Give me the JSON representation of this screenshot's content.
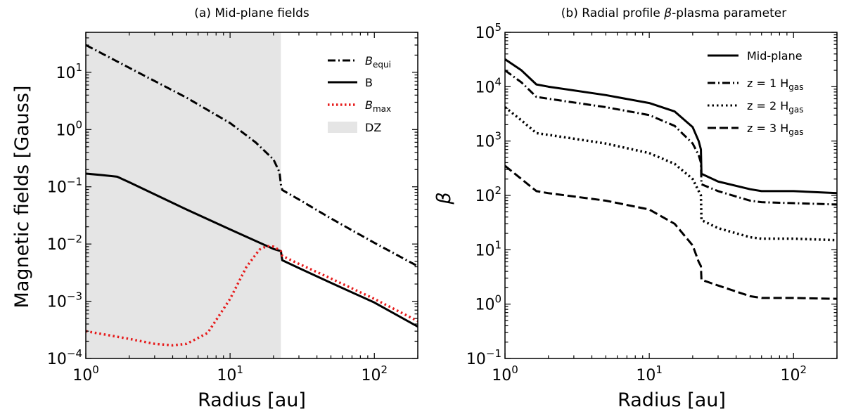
{
  "chart_data": [
    {
      "type": "line",
      "panel": "a",
      "title": "(a) Mid-plane fields",
      "xlabel": "Radius [au]",
      "ylabel": "Magnetic fields [Gauss]",
      "xscale": "log",
      "yscale": "log",
      "xlim": [
        1,
        200
      ],
      "ylim": [
        0.0001,
        50
      ],
      "x_ticks": [
        {
          "value": 1,
          "base": "10",
          "exp": "0"
        },
        {
          "value": 10,
          "base": "10",
          "exp": "1"
        },
        {
          "value": 100,
          "base": "10",
          "exp": "2"
        }
      ],
      "y_ticks": [
        {
          "value": 0.0001,
          "base": "10",
          "exp": "−4"
        },
        {
          "value": 0.001,
          "base": "10",
          "exp": "−3"
        },
        {
          "value": 0.01,
          "base": "10",
          "exp": "−2"
        },
        {
          "value": 0.1,
          "base": "10",
          "exp": "−1"
        },
        {
          "value": 1,
          "base": "10",
          "exp": "0"
        },
        {
          "value": 10,
          "base": "10",
          "exp": "1"
        }
      ],
      "shaded_region": {
        "name": "DZ",
        "x_range": [
          1,
          22.5
        ],
        "color": "#e5e5e5"
      },
      "legend_position": "top-right",
      "series": [
        {
          "name": "B_equi",
          "label_main": "B",
          "label_sub": "equi",
          "italic": true,
          "style": "dashdot",
          "color": "#000000",
          "points": [
            [
              1,
              30
            ],
            [
              2,
              12
            ],
            [
              5,
              3.6
            ],
            [
              10,
              1.3
            ],
            [
              15,
              0.6
            ],
            [
              20,
              0.3
            ],
            [
              22,
              0.18
            ],
            [
              22.5,
              0.11
            ],
            [
              23,
              0.088
            ],
            [
              30,
              0.06
            ],
            [
              50,
              0.028
            ],
            [
              100,
              0.0105
            ],
            [
              200,
              0.0041
            ]
          ]
        },
        {
          "name": "B",
          "label_main": "B",
          "label_sub": "",
          "italic": false,
          "style": "solid",
          "color": "#000000",
          "points": [
            [
              1,
              0.17
            ],
            [
              1.3,
              0.16
            ],
            [
              1.65,
              0.15
            ],
            [
              2,
              0.12
            ],
            [
              5,
              0.04
            ],
            [
              10,
              0.018
            ],
            [
              20,
              0.0082
            ],
            [
              22.5,
              0.0075
            ],
            [
              23,
              0.0052
            ],
            [
              30,
              0.0038
            ],
            [
              50,
              0.0021
            ],
            [
              100,
              0.00095
            ],
            [
              200,
              0.00036
            ]
          ]
        },
        {
          "name": "B_max",
          "label_main": "B",
          "label_sub": "max",
          "italic": true,
          "style": "dotted",
          "color": "#e61a1a",
          "points": [
            [
              1,
              0.0003
            ],
            [
              2,
              0.00022
            ],
            [
              3,
              0.00018
            ],
            [
              4,
              0.00017
            ],
            [
              5,
              0.00018
            ],
            [
              7,
              0.00028
            ],
            [
              10,
              0.0011
            ],
            [
              13,
              0.004
            ],
            [
              16,
              0.008
            ],
            [
              18,
              0.0092
            ],
            [
              20,
              0.009
            ],
            [
              22.5,
              0.0075
            ],
            [
              23,
              0.0062
            ],
            [
              30,
              0.0045
            ],
            [
              50,
              0.0025
            ],
            [
              100,
              0.0011
            ],
            [
              200,
              0.00045
            ]
          ]
        }
      ]
    },
    {
      "type": "line",
      "panel": "b",
      "title_prefix": "(b) Radial profile ",
      "title_symbol": "β",
      "title_suffix": "-plasma parameter",
      "xlabel": "Radius [au]",
      "ylabel": "β",
      "xscale": "log",
      "yscale": "log",
      "xlim": [
        1,
        200
      ],
      "ylim": [
        0.1,
        100000
      ],
      "x_ticks": [
        {
          "value": 1,
          "base": "10",
          "exp": "0"
        },
        {
          "value": 10,
          "base": "10",
          "exp": "1"
        },
        {
          "value": 100,
          "base": "10",
          "exp": "2"
        }
      ],
      "y_ticks": [
        {
          "value": 0.1,
          "base": "10",
          "exp": "−1"
        },
        {
          "value": 1,
          "base": "10",
          "exp": "0"
        },
        {
          "value": 10,
          "base": "10",
          "exp": "1"
        },
        {
          "value": 100,
          "base": "10",
          "exp": "2"
        },
        {
          "value": 1000,
          "base": "10",
          "exp": "3"
        },
        {
          "value": 10000,
          "base": "10",
          "exp": "4"
        },
        {
          "value": 100000,
          "base": "10",
          "exp": "5"
        }
      ],
      "legend_position": "top-right",
      "series": [
        {
          "name": "Mid-plane",
          "label_main": "Mid-plane",
          "label_sub": "",
          "style": "solid",
          "color": "#000000",
          "points": [
            [
              1,
              32000
            ],
            [
              1.3,
              20000
            ],
            [
              1.65,
              11000
            ],
            [
              2,
              10000
            ],
            [
              5,
              7000
            ],
            [
              10,
              5000
            ],
            [
              15,
              3500
            ],
            [
              20,
              1800
            ],
            [
              22,
              1000
            ],
            [
              22.8,
              700
            ],
            [
              23,
              250
            ],
            [
              30,
              180
            ],
            [
              50,
              130
            ],
            [
              60,
              120
            ],
            [
              100,
              120
            ],
            [
              200,
              110
            ]
          ]
        },
        {
          "name": "z = 1 Hgas",
          "label_main": "z = 1 H",
          "label_sub": "gas",
          "style": "dashdot",
          "color": "#000000",
          "points": [
            [
              1,
              20000
            ],
            [
              1.3,
              12000
            ],
            [
              1.65,
              6500
            ],
            [
              2,
              6000
            ],
            [
              5,
              4200
            ],
            [
              10,
              3000
            ],
            [
              15,
              1900
            ],
            [
              20,
              900
            ],
            [
              22,
              550
            ],
            [
              22.8,
              400
            ],
            [
              23,
              160
            ],
            [
              30,
              120
            ],
            [
              50,
              80
            ],
            [
              60,
              75
            ],
            [
              100,
              72
            ],
            [
              200,
              68
            ]
          ]
        },
        {
          "name": "z = 2 Hgas",
          "label_main": "z = 2 H",
          "label_sub": "gas",
          "style": "dotted",
          "color": "#000000",
          "points": [
            [
              1,
              4200
            ],
            [
              1.3,
              2400
            ],
            [
              1.65,
              1400
            ],
            [
              2,
              1300
            ],
            [
              5,
              900
            ],
            [
              10,
              600
            ],
            [
              15,
              380
            ],
            [
              20,
              200
            ],
            [
              22,
              120
            ],
            [
              22.8,
              100
            ],
            [
              23,
              35
            ],
            [
              30,
              25
            ],
            [
              50,
              17
            ],
            [
              60,
              16
            ],
            [
              100,
              16
            ],
            [
              200,
              15
            ]
          ]
        },
        {
          "name": "z = 3 Hgas",
          "label_main": "z = 3 H",
          "label_sub": "gas",
          "style": "dashed",
          "color": "#000000",
          "points": [
            [
              1,
              350
            ],
            [
              1.3,
              200
            ],
            [
              1.65,
              120
            ],
            [
              2,
              110
            ],
            [
              5,
              80
            ],
            [
              10,
              55
            ],
            [
              15,
              30
            ],
            [
              20,
              12
            ],
            [
              22,
              6
            ],
            [
              22.8,
              5
            ],
            [
              23,
              2.8
            ],
            [
              30,
              2.2
            ],
            [
              50,
              1.4
            ],
            [
              60,
              1.3
            ],
            [
              100,
              1.3
            ],
            [
              200,
              1.25
            ]
          ]
        }
      ]
    }
  ]
}
